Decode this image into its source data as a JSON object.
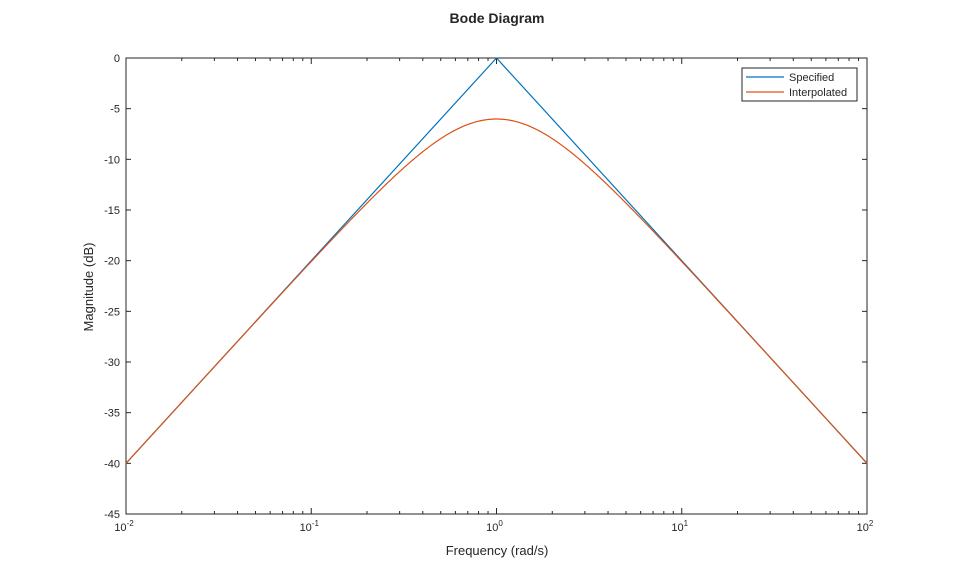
{
  "chart_data": {
    "type": "line",
    "title": "Bode Diagram",
    "xlabel": "Frequency (rad/s)",
    "ylabel": "Magnitude (dB)",
    "xscale": "log",
    "xlim": [
      0.01,
      100
    ],
    "ylim": [
      -45,
      0
    ],
    "xticks": [
      {
        "base": "10",
        "exp": "-2",
        "value": 0.01
      },
      {
        "base": "10",
        "exp": "-1",
        "value": 0.1
      },
      {
        "base": "10",
        "exp": "0",
        "value": 1
      },
      {
        "base": "10",
        "exp": "1",
        "value": 10
      },
      {
        "base": "10",
        "exp": "2",
        "value": 100
      }
    ],
    "yticks": [
      "0",
      "-5",
      "-10",
      "-15",
      "-20",
      "-25",
      "-30",
      "-35",
      "-40",
      "-45"
    ],
    "legend_position": "top-right",
    "grid": false,
    "series": [
      {
        "name": "Specified",
        "color": "#0072BD",
        "x": [
          0.01,
          1,
          100
        ],
        "y": [
          -40,
          0,
          -40
        ]
      },
      {
        "name": "Interpolated",
        "color": "#D95319",
        "x": [
          0.01,
          0.0178,
          0.0316,
          0.0562,
          0.1,
          0.178,
          0.316,
          0.562,
          1,
          1.78,
          3.16,
          5.62,
          10,
          17.8,
          31.6,
          56.2,
          100
        ],
        "y": [
          -40,
          -35,
          -30,
          -25,
          -20.04,
          -15.12,
          -10.41,
          -7.22,
          -6.02,
          -7.22,
          -10.41,
          -15.12,
          -20.04,
          -25,
          -30,
          -35,
          -40
        ]
      }
    ]
  }
}
